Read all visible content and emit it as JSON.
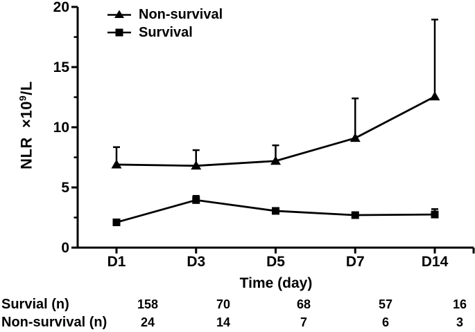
{
  "figure": {
    "background": "#ffffff",
    "ink_color": "#000000"
  },
  "chart_data": {
    "type": "line",
    "title": "",
    "xlabel": "Time (day)",
    "ylabel": "NLR ×10⁹/L",
    "ylabel_parts": {
      "prefix": "NLR  ×10",
      "sup": "9",
      "suffix": "/L"
    },
    "categories": [
      "D1",
      "D3",
      "D5",
      "D7",
      "D14"
    ],
    "ylim": [
      0,
      20
    ],
    "yticks": [
      0,
      5,
      10,
      15,
      20
    ],
    "yticks_minor": [
      2.5,
      7.5,
      12.5,
      17.5
    ],
    "grid": false,
    "legend_position": "top-left-inside",
    "error_bars": "upper-only",
    "series": [
      {
        "name": "Non-survival",
        "marker": "triangle",
        "color": "#000000",
        "values": [
          6.9,
          6.8,
          7.2,
          9.1,
          12.55
        ],
        "err_up": [
          1.45,
          1.3,
          1.3,
          3.3,
          6.4
        ]
      },
      {
        "name": "Survival",
        "marker": "square",
        "color": "#000000",
        "values": [
          2.1,
          3.95,
          3.05,
          2.7,
          2.75
        ],
        "err_up": [
          0,
          0.35,
          0.12,
          0,
          0.45
        ]
      }
    ],
    "sample_size_table": {
      "rows": [
        {
          "label": "Survial (n)",
          "values": [
            "158",
            "70",
            "68",
            "57",
            "16"
          ]
        },
        {
          "label": "Non-survival (n)",
          "values": [
            "24",
            "14",
            "7",
            "6",
            "3"
          ]
        }
      ]
    }
  }
}
